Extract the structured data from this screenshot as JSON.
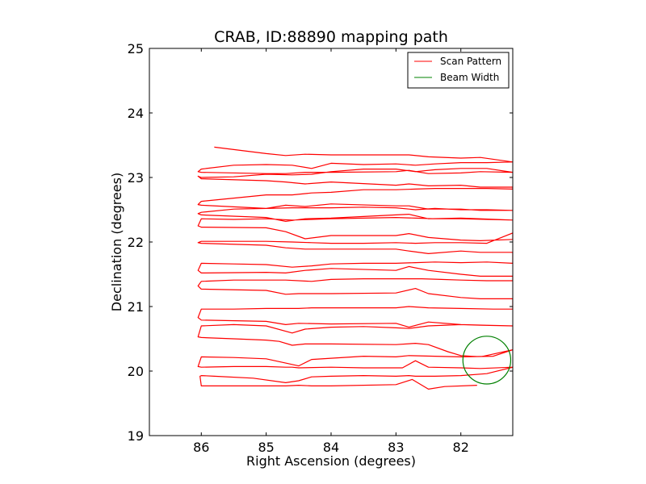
{
  "chart_data": {
    "type": "line",
    "title": "CRAB, ID:88890 mapping path",
    "xlabel": "Right Ascension (degrees)",
    "ylabel": "Declination (degrees)",
    "xlim": [
      86.8,
      81.2
    ],
    "ylim": [
      19,
      25
    ],
    "x_inverted": true,
    "xticks": [
      86,
      85,
      84,
      83,
      82
    ],
    "yticks": [
      19,
      20,
      21,
      22,
      23,
      24,
      25
    ],
    "xtick_labels": [
      "86",
      "85",
      "84",
      "83",
      "82"
    ],
    "ytick_labels": [
      "19",
      "20",
      "21",
      "22",
      "23",
      "24",
      "25"
    ],
    "grid": false,
    "legend": {
      "position": "top-right",
      "entries": [
        {
          "label": "Scan Pattern",
          "color": "#ff0000"
        },
        {
          "label": "Beam Width",
          "color": "#008000"
        }
      ]
    },
    "series": [
      {
        "name": "Scan Pattern",
        "kind": "polyline",
        "color": "#ff0000",
        "x": [
          81.75,
          82.25,
          82.5,
          82.75,
          83.0,
          84.0,
          84.3,
          84.5,
          84.7,
          85.0,
          86.0,
          86.02,
          86.0,
          85.8,
          85.2,
          84.7,
          84.5,
          84.3,
          84.0,
          83.5,
          83.0,
          82.8,
          82.7,
          82.4,
          82.0,
          81.6,
          81.2,
          81.2,
          81.7,
          82.0,
          82.5,
          82.7,
          82.9,
          83.5,
          84.0,
          84.5,
          84.6,
          84.7,
          85.0,
          85.5,
          86.0,
          86.05,
          86.0,
          85.5,
          85.0,
          84.5,
          84.3,
          83.5,
          83.0,
          82.8,
          82.4,
          82.0,
          81.5,
          81.2,
          81.2,
          81.7,
          82.0,
          82.2,
          82.5,
          82.7,
          83.0,
          84.0,
          84.4,
          84.6,
          84.8,
          85.0,
          85.5,
          86.0,
          86.05,
          86.0,
          85.5,
          85.0,
          84.6,
          84.4,
          84.0,
          83.5,
          83.0,
          82.8,
          82.5,
          82.0,
          81.6,
          81.2,
          81.2,
          81.7,
          82.0,
          82.5,
          82.8,
          83.0,
          84.0,
          84.5,
          84.7,
          85.0,
          86.0,
          86.05,
          86.0,
          85.5,
          85.0,
          84.5,
          84.3,
          84.0,
          83.5,
          83.0,
          82.8,
          82.5,
          82.0,
          81.5,
          81.2,
          81.2,
          81.7,
          82.0,
          82.5,
          82.7,
          83.0,
          84.0,
          84.5,
          84.7,
          85.0,
          86.0,
          86.05,
          86.0,
          85.5,
          85.0,
          84.7,
          84.3,
          84.0,
          83.5,
          83.0,
          82.6,
          82.3,
          82.0,
          81.6,
          81.2,
          81.2,
          81.7,
          82.0,
          82.5,
          82.8,
          83.0,
          84.0,
          84.4,
          84.7,
          85.0,
          86.0,
          86.05,
          86.0,
          85.5,
          85.0,
          84.6,
          84.3,
          84.0,
          83.5,
          83.0,
          82.7,
          82.4,
          82.0,
          81.6,
          81.2,
          81.2,
          81.7,
          82.0,
          82.5,
          82.8,
          83.0,
          84.0,
          84.4,
          84.7,
          85.0,
          86.0,
          86.05,
          86.0,
          85.5,
          85.0,
          84.6,
          84.3,
          84.0,
          83.5,
          83.0,
          82.7,
          82.4,
          82.0,
          81.6,
          81.2,
          81.2,
          81.7,
          82.0,
          82.5,
          82.8,
          83.0,
          84.0,
          84.4,
          84.7,
          85.0,
          86.0,
          86.05,
          86.0,
          85.5,
          85.0,
          84.6,
          84.3,
          84.0,
          83.5,
          83.0,
          82.7,
          82.4,
          82.0,
          81.6,
          81.2,
          81.2,
          81.7,
          82.0,
          82.5,
          82.8,
          83.0,
          84.0,
          84.4,
          84.7,
          85.0,
          86.0,
          86.05,
          86.0,
          85.5,
          85.0,
          84.6,
          84.3,
          84.0,
          83.5,
          83.0,
          82.7,
          82.4,
          82.0,
          81.6,
          81.2,
          81.2,
          81.7,
          82.0,
          82.5,
          82.8,
          83.0,
          84.0,
          84.4,
          84.7,
          85.0,
          86.0,
          86.05,
          86.0,
          85.5,
          85.0,
          84.6,
          84.3,
          84.0,
          83.5,
          83.0,
          82.7,
          82.4,
          82.0,
          81.6,
          81.2,
          81.2,
          81.7,
          82.0,
          82.5,
          82.8,
          83.0,
          84.0,
          84.4,
          84.7,
          85.0,
          86.0,
          86.05,
          86.0,
          85.5,
          85.0,
          84.6,
          84.3,
          84.0,
          83.5,
          83.0,
          82.7,
          82.4,
          82.0,
          81.6,
          81.2,
          81.2,
          81.7,
          82.0,
          82.5,
          82.8,
          83.0,
          84.0,
          84.4,
          84.7,
          85.0,
          86.0,
          86.05,
          86.0,
          85.5,
          85.0,
          84.6,
          84.3,
          84.0,
          83.5,
          83.0,
          82.7,
          82.4,
          82.0,
          81.6,
          81.2,
          81.2,
          81.7,
          82.0,
          82.5,
          82.8,
          83.0,
          84.0,
          84.4,
          84.7,
          85.0,
          85.8
        ],
        "y": [
          19.78,
          19.76,
          19.72,
          19.87,
          19.79,
          19.77,
          19.77,
          19.78,
          19.77,
          19.77,
          19.77,
          19.92,
          19.93,
          19.92,
          19.89,
          19.82,
          19.85,
          19.91,
          19.92,
          19.93,
          19.92,
          19.93,
          19.92,
          19.92,
          19.93,
          19.96,
          20.06,
          20.06,
          20.04,
          20.05,
          20.06,
          20.16,
          20.05,
          20.05,
          20.06,
          20.05,
          20.06,
          20.06,
          20.07,
          20.07,
          20.06,
          20.07,
          20.22,
          20.21,
          20.19,
          20.08,
          20.18,
          20.23,
          20.22,
          20.24,
          20.23,
          20.22,
          20.23,
          20.33,
          20.33,
          20.22,
          20.24,
          20.3,
          20.41,
          20.43,
          20.41,
          20.42,
          20.42,
          20.4,
          20.46,
          20.48,
          20.5,
          20.52,
          20.53,
          20.7,
          20.72,
          20.7,
          20.59,
          20.65,
          20.68,
          20.69,
          20.67,
          20.66,
          20.7,
          20.72,
          20.71,
          20.7,
          20.7,
          20.71,
          20.72,
          20.76,
          20.68,
          20.74,
          20.73,
          20.74,
          20.72,
          20.77,
          20.79,
          20.83,
          20.96,
          20.96,
          20.97,
          20.97,
          20.98,
          20.98,
          20.98,
          20.98,
          21.0,
          20.98,
          20.97,
          20.96,
          20.96,
          21.12,
          21.12,
          21.14,
          21.2,
          21.28,
          21.21,
          21.2,
          21.2,
          21.19,
          21.25,
          21.27,
          21.32,
          21.39,
          21.41,
          21.41,
          21.41,
          21.39,
          21.42,
          21.43,
          21.43,
          21.43,
          21.42,
          21.41,
          21.4,
          21.4,
          21.47,
          21.47,
          21.5,
          21.56,
          21.62,
          21.56,
          21.59,
          21.56,
          21.52,
          21.53,
          21.52,
          21.56,
          21.67,
          21.66,
          21.65,
          21.61,
          21.63,
          21.66,
          21.67,
          21.67,
          21.68,
          21.69,
          21.68,
          21.69,
          21.67,
          21.84,
          21.84,
          21.86,
          21.82,
          21.86,
          21.89,
          21.89,
          21.89,
          21.91,
          21.95,
          21.98,
          21.99,
          22.01,
          22.01,
          22.01,
          22.0,
          21.99,
          21.98,
          21.98,
          21.99,
          21.98,
          21.99,
          21.99,
          21.98,
          22.14,
          22.04,
          22.02,
          22.03,
          22.07,
          22.13,
          22.1,
          22.1,
          22.05,
          22.16,
          22.22,
          22.23,
          22.25,
          22.36,
          22.35,
          22.36,
          22.34,
          22.35,
          22.36,
          22.37,
          22.38,
          22.37,
          22.36,
          22.36,
          22.35,
          22.34,
          22.34,
          22.36,
          22.37,
          22.36,
          22.43,
          22.42,
          22.37,
          22.36,
          22.32,
          22.38,
          22.42,
          22.44,
          22.46,
          22.51,
          22.52,
          22.53,
          22.53,
          22.53,
          22.54,
          22.53,
          22.5,
          22.52,
          22.5,
          22.5,
          22.49,
          22.49,
          22.49,
          22.51,
          22.51,
          22.56,
          22.56,
          22.59,
          22.55,
          22.57,
          22.52,
          22.57,
          22.58,
          22.63,
          22.68,
          22.73,
          22.73,
          22.76,
          22.77,
          22.81,
          22.81,
          22.82,
          22.83,
          22.83,
          22.83,
          22.82,
          22.85,
          22.85,
          22.88,
          22.87,
          22.9,
          22.88,
          22.93,
          22.9,
          22.93,
          22.95,
          22.98,
          23.02,
          23.0,
          23.01,
          23.05,
          23.04,
          23.05,
          23.09,
          23.13,
          23.13,
          23.09,
          23.12,
          23.14,
          23.14,
          23.08,
          23.08,
          23.09,
          23.07,
          23.06,
          23.11,
          23.09,
          23.08,
          23.08,
          23.06,
          23.06,
          23.08,
          23.09,
          23.13,
          23.19,
          23.2,
          23.19,
          23.14,
          23.22,
          23.2,
          23.21,
          23.19,
          23.21,
          23.23,
          23.23,
          23.24,
          23.24,
          23.31,
          23.3,
          23.32,
          23.35,
          23.35,
          23.35,
          23.36,
          23.34,
          23.37,
          23.47
        ]
      },
      {
        "name": "Beam Width",
        "kind": "circle",
        "color": "#008000",
        "center": [
          81.6,
          20.17
        ],
        "radius": 0.37
      }
    ]
  }
}
